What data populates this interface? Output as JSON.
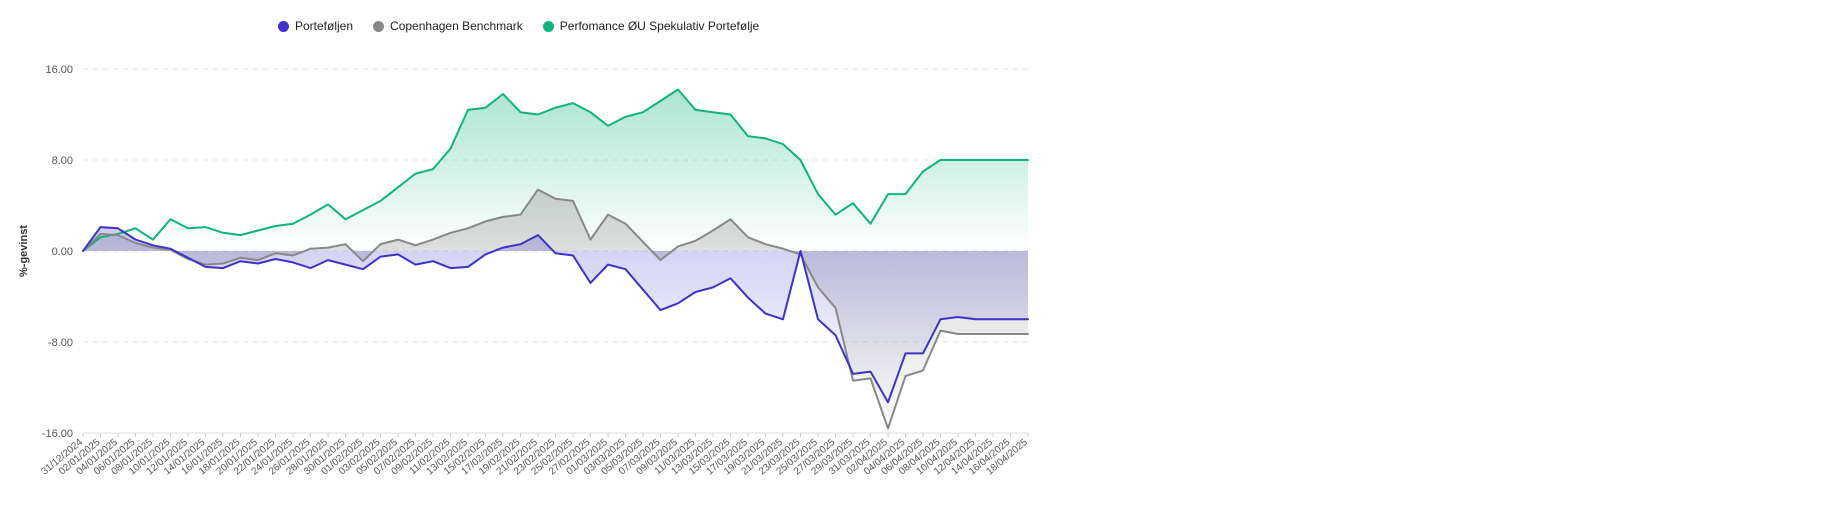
{
  "legend": [
    {
      "label": "Porteføljen",
      "color": "#3d33c9"
    },
    {
      "label": "Copenhagen Benchmark",
      "color": "#888888"
    },
    {
      "label": "Perfomance ØU Spekulativ Portefølje",
      "color": "#10b47a"
    }
  ],
  "chart_data": {
    "type": "line",
    "ylabel": "%-gevinst",
    "ylim": [
      -16,
      16
    ],
    "yticks": [
      "16.00",
      "8.00",
      "0.00",
      "-8.00",
      "-16.00"
    ],
    "grid": true,
    "legend_position": "top",
    "categories": [
      "31/12/2024",
      "02/01/2025",
      "04/01/2025",
      "06/01/2025",
      "08/01/2025",
      "10/01/2025",
      "12/01/2025",
      "14/01/2025",
      "16/01/2025",
      "18/01/2025",
      "20/01/2025",
      "22/01/2025",
      "24/01/2025",
      "26/01/2025",
      "28/01/2025",
      "30/01/2025",
      "01/02/2025",
      "03/02/2025",
      "05/02/2025",
      "07/02/2025",
      "09/02/2025",
      "11/02/2025",
      "13/02/2025",
      "15/02/2025",
      "17/02/2025",
      "19/02/2025",
      "21/02/2025",
      "23/02/2025",
      "25/02/2025",
      "27/02/2025",
      "01/03/2025",
      "03/03/2025",
      "05/03/2025",
      "07/03/2025",
      "09/03/2025",
      "11/03/2025",
      "13/03/2025",
      "15/03/2025",
      "17/03/2025",
      "19/03/2025",
      "21/03/2025",
      "23/03/2025",
      "25/03/2025",
      "27/03/2025",
      "29/03/2025",
      "31/03/2025",
      "02/04/2025",
      "04/04/2025",
      "06/04/2025",
      "08/04/2025",
      "10/04/2025",
      "12/04/2025",
      "14/04/2025",
      "16/04/2025",
      "18/04/2025"
    ],
    "series": [
      {
        "name": "Porteføljen",
        "color": "#3d33c9",
        "values": [
          0.0,
          2.1,
          2.0,
          1.0,
          0.5,
          0.2,
          -0.6,
          -1.4,
          -1.5,
          -0.9,
          -1.1,
          -0.7,
          -1.0,
          -1.5,
          -0.8,
          -1.2,
          -1.6,
          -0.5,
          -0.3,
          -1.2,
          -0.9,
          -1.5,
          -1.4,
          -0.3,
          0.3,
          0.6,
          1.4,
          -0.2,
          -0.4,
          -2.8,
          -1.2,
          -1.6,
          -3.4,
          -5.2,
          -4.6,
          -3.6,
          -3.2,
          -2.4,
          -4.1,
          -5.5,
          -6.0,
          0.0,
          -6.0,
          -7.4,
          -10.8,
          -10.6,
          -13.3,
          -9.0,
          -9.0,
          -6.0,
          -5.8,
          -6.0,
          -6.0,
          -6.0,
          -6.0
        ]
      },
      {
        "name": "Copenhagen Benchmark",
        "color": "#888888",
        "values": [
          0.0,
          1.5,
          1.4,
          0.7,
          0.3,
          0.1,
          -0.7,
          -1.2,
          -1.1,
          -0.6,
          -0.8,
          -0.2,
          -0.4,
          0.2,
          0.3,
          0.6,
          -0.9,
          0.6,
          1.0,
          0.5,
          1.0,
          1.6,
          2.0,
          2.6,
          3.0,
          3.2,
          5.4,
          4.6,
          4.4,
          1.0,
          3.2,
          2.4,
          0.8,
          -0.8,
          0.4,
          0.9,
          1.8,
          2.8,
          1.2,
          0.6,
          0.2,
          -0.3,
          -3.2,
          -5.0,
          -11.4,
          -11.2,
          -15.6,
          -11.0,
          -10.5,
          -7.0,
          -7.3,
          -7.3,
          -7.3,
          -7.3,
          -7.3
        ]
      },
      {
        "name": "Perfomance ØU Spekulativ Portefølje",
        "color": "#10b47a",
        "values": [
          0.0,
          1.2,
          1.5,
          2.0,
          1.0,
          2.8,
          2.0,
          2.1,
          1.6,
          1.4,
          1.8,
          2.2,
          2.4,
          3.2,
          4.1,
          2.8,
          3.6,
          4.4,
          5.6,
          6.8,
          7.2,
          9.0,
          12.4,
          12.6,
          13.8,
          12.2,
          12.0,
          12.6,
          13.0,
          12.2,
          11.0,
          11.8,
          12.2,
          13.2,
          14.2,
          12.4,
          12.2,
          12.0,
          10.1,
          9.9,
          9.4,
          8.0,
          5.0,
          3.2,
          4.2,
          2.4,
          5.0,
          5.0,
          7.0,
          8.0,
          8.0,
          8.0,
          8.0,
          8.0,
          8.0
        ]
      }
    ]
  }
}
